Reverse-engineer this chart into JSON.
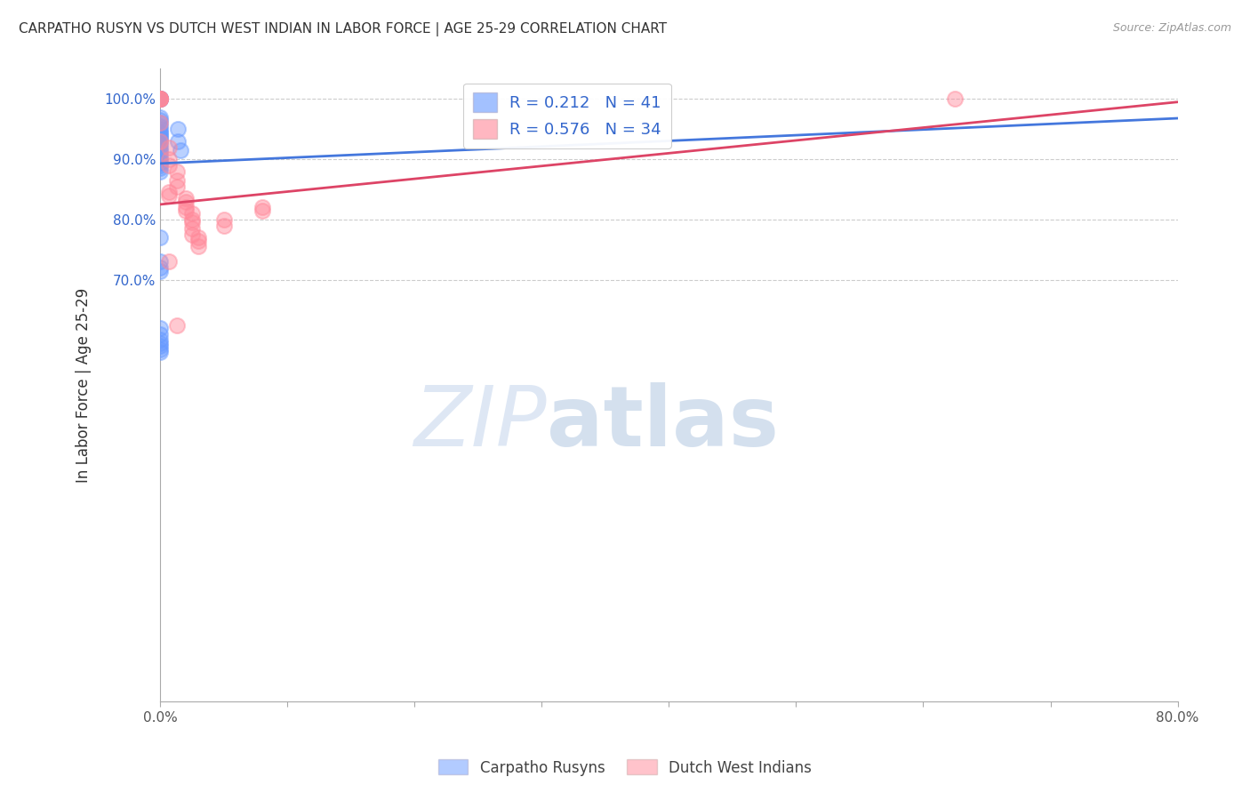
{
  "title": "CARPATHO RUSYN VS DUTCH WEST INDIAN IN LABOR FORCE | AGE 25-29 CORRELATION CHART",
  "source": "Source: ZipAtlas.com",
  "ylabel": "In Labor Force | Age 25-29",
  "xlim": [
    0.0,
    0.8
  ],
  "ylim": [
    0.0,
    1.05
  ],
  "xtick_positions": [
    0.0,
    0.1,
    0.2,
    0.3,
    0.4,
    0.5,
    0.6,
    0.7,
    0.8
  ],
  "xticklabels": [
    "0.0%",
    "",
    "",
    "",
    "",
    "",
    "",
    "",
    "80.0%"
  ],
  "ytick_positions": [
    0.7,
    0.8,
    0.9,
    1.0
  ],
  "yticklabels": [
    "70.0%",
    "80.0%",
    "90.0%",
    "100.0%"
  ],
  "blue_color": "#6699ff",
  "pink_color": "#ff8899",
  "blue_R": 0.212,
  "blue_N": 41,
  "pink_R": 0.576,
  "pink_N": 34,
  "blue_line_x0": 0.0,
  "blue_line_y0": 0.893,
  "blue_line_x1": 0.8,
  "blue_line_y1": 0.968,
  "pink_line_x0": 0.0,
  "pink_line_y0": 0.825,
  "pink_line_x1": 0.8,
  "pink_line_y1": 0.995,
  "blue_scatter_x": [
    0.0,
    0.0,
    0.0,
    0.0,
    0.0,
    0.0,
    0.0,
    0.0,
    0.0,
    0.0,
    0.0,
    0.0,
    0.0,
    0.0,
    0.0,
    0.0,
    0.0,
    0.0,
    0.0,
    0.0,
    0.0,
    0.0,
    0.0,
    0.0,
    0.0,
    0.0,
    0.0,
    0.014,
    0.014,
    0.016,
    0.0,
    0.0,
    0.0,
    0.0,
    0.0,
    0.0,
    0.0,
    0.0,
    0.0,
    0.0,
    0.0
  ],
  "blue_scatter_y": [
    1.0,
    1.0,
    1.0,
    1.0,
    1.0,
    0.97,
    0.965,
    0.96,
    0.955,
    0.95,
    0.945,
    0.945,
    0.94,
    0.935,
    0.935,
    0.93,
    0.925,
    0.92,
    0.915,
    0.91,
    0.905,
    0.9,
    0.895,
    0.895,
    0.89,
    0.885,
    0.88,
    0.93,
    0.95,
    0.915,
    0.77,
    0.73,
    0.72,
    0.715,
    0.62,
    0.61,
    0.6,
    0.595,
    0.59,
    0.585,
    0.58
  ],
  "pink_scatter_x": [
    0.0,
    0.0,
    0.0,
    0.0,
    0.0,
    0.0,
    0.0,
    0.007,
    0.007,
    0.007,
    0.013,
    0.013,
    0.013,
    0.007,
    0.007,
    0.02,
    0.02,
    0.02,
    0.02,
    0.025,
    0.025,
    0.025,
    0.025,
    0.025,
    0.03,
    0.03,
    0.03,
    0.05,
    0.05,
    0.08,
    0.08,
    0.013,
    0.625,
    0.007
  ],
  "pink_scatter_y": [
    1.0,
    1.0,
    1.0,
    1.0,
    1.0,
    0.96,
    0.93,
    0.92,
    0.9,
    0.89,
    0.88,
    0.865,
    0.855,
    0.845,
    0.84,
    0.835,
    0.83,
    0.82,
    0.815,
    0.81,
    0.8,
    0.795,
    0.785,
    0.775,
    0.77,
    0.765,
    0.755,
    0.8,
    0.79,
    0.82,
    0.815,
    0.625,
    1.0,
    0.73
  ],
  "watermark_zip": "ZIP",
  "watermark_atlas": "atlas",
  "legend_labels": [
    "Carpatho Rusyns",
    "Dutch West Indians"
  ],
  "background_color": "#ffffff",
  "grid_color": "#cccccc",
  "grid_linestyle": "--"
}
